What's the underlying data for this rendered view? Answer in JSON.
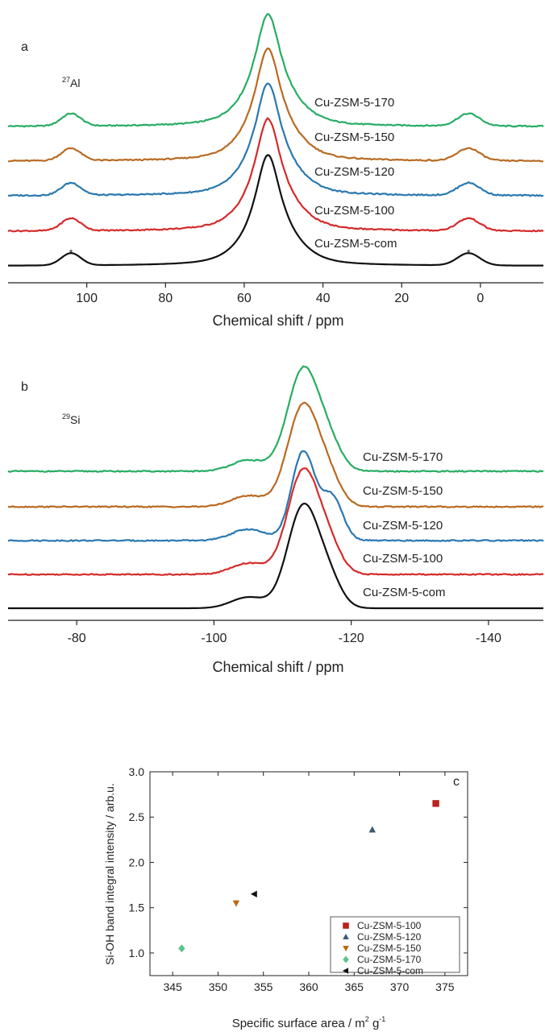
{
  "colors": {
    "com": "#111111",
    "s100": "#d62a2a",
    "s120": "#2a78b0",
    "s150": "#b86a22",
    "s170": "#27ad64",
    "marker100": "#b8231e",
    "marker120": "#3a5a78",
    "marker150": "#b86a13",
    "marker170": "#5cc48a",
    "markercom": "#111111"
  },
  "chart_data": [
    {
      "panel": "a",
      "type": "line",
      "nucleus_mass": "27",
      "nucleus_symbol": "Al",
      "xlabel": "Chemical shift / ppm",
      "xlim": [
        120,
        -16
      ],
      "xticks": [
        100,
        80,
        60,
        40,
        20,
        0
      ],
      "spinning_sideband_marker": "*",
      "spinning_sidebands_ppm": [
        104,
        3
      ],
      "series": [
        {
          "name": "Cu-ZSM-5-170",
          "color_key": "s170",
          "peak_ppm": 54,
          "peak_height": 1.0
        },
        {
          "name": "Cu-ZSM-5-150",
          "color_key": "s150",
          "peak_ppm": 54,
          "peak_height": 1.0
        },
        {
          "name": "Cu-ZSM-5-120",
          "color_key": "s120",
          "peak_ppm": 54,
          "peak_height": 1.0
        },
        {
          "name": "Cu-ZSM-5-100",
          "color_key": "s100",
          "peak_ppm": 54,
          "peak_height": 1.0
        },
        {
          "name": "Cu-ZSM-5-com",
          "color_key": "com",
          "peak_ppm": 54,
          "peak_height": 1.0
        }
      ]
    },
    {
      "panel": "b",
      "type": "line",
      "nucleus_mass": "29",
      "nucleus_symbol": "Si",
      "xlabel": "Chemical shift / ppm",
      "xlim": [
        -70,
        -148
      ],
      "xticks": [
        -80,
        -100,
        -120,
        -140
      ],
      "series": [
        {
          "name": "Cu-ZSM-5-170",
          "color_key": "s170",
          "peak_ppm": -113
        },
        {
          "name": "Cu-ZSM-5-150",
          "color_key": "s150",
          "peak_ppm": -113
        },
        {
          "name": "Cu-ZSM-5-120",
          "color_key": "s120",
          "peak_ppm": -113
        },
        {
          "name": "Cu-ZSM-5-100",
          "color_key": "s100",
          "peak_ppm": -113
        },
        {
          "name": "Cu-ZSM-5-com",
          "color_key": "com",
          "peak_ppm": -113
        }
      ]
    },
    {
      "panel": "c",
      "type": "scatter",
      "xlabel": "Specific surface area / m",
      "xlabel_sup1": "2",
      "xlabel_mid": " g",
      "xlabel_sup2": "-1",
      "ylabel": "Si-OH band integral intensity / arb.u.",
      "xlim": [
        342.5,
        377.5
      ],
      "ylim": [
        0.75,
        3.0
      ],
      "xticks": [
        345,
        350,
        355,
        360,
        365,
        370,
        375
      ],
      "yticks": [
        "1.0",
        "1.5",
        "2.0",
        "2.5",
        "3.0"
      ],
      "legend_position": "bottom-right",
      "series": [
        {
          "name": "Cu-ZSM-5-100",
          "marker": "square",
          "color_key": "marker100",
          "x": 374,
          "y": 2.65
        },
        {
          "name": "Cu-ZSM-5-120",
          "marker": "triangle-up",
          "color_key": "marker120",
          "x": 367,
          "y": 2.36
        },
        {
          "name": "Cu-ZSM-5-150",
          "marker": "triangle-down",
          "color_key": "marker150",
          "x": 352,
          "y": 1.55
        },
        {
          "name": "Cu-ZSM-5-170",
          "marker": "diamond",
          "color_key": "marker170",
          "x": 346,
          "y": 1.05
        },
        {
          "name": "Cu-ZSM-5-com",
          "marker": "triangle-left",
          "color_key": "markercom",
          "x": 354,
          "y": 1.65
        }
      ]
    }
  ]
}
